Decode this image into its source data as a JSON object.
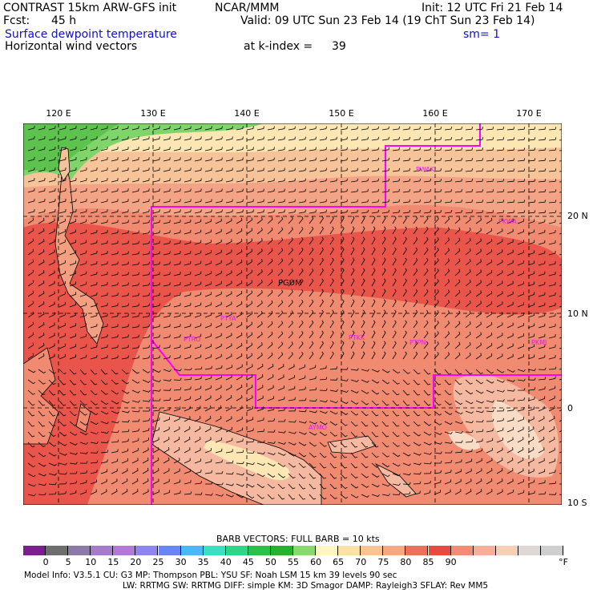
{
  "header": {
    "model_title": "CONTRAST 15km ARW-GFS init",
    "org": "NCAR/MMM",
    "init": "Init: 12 UTC Fri 21 Feb 14",
    "fcst_label": "Fcst:",
    "fcst_value": "45 h",
    "valid": "Valid: 09 UTC Sun 23 Feb 14 (19 ChT Sun 23 Feb 14)",
    "field1": "Surface dewpoint temperature",
    "smoothing": "sm= 1",
    "field2": "Horizontal wind vectors",
    "kindex": "at k-index =",
    "kindex_value": "39"
  },
  "map": {
    "lon_labels": [
      "120 E",
      "130 E",
      "140 E",
      "150 E",
      "160 E",
      "170 E"
    ],
    "lat_labels": [
      "20 N",
      "10 N",
      "0",
      "10 S"
    ],
    "stations": [
      "PGUM",
      "PTYA",
      "PTRO",
      "PTKK",
      "PTPN",
      "PKMJ",
      "PKWA",
      "PWAK",
      "AYMO"
    ],
    "boundary_color": "#ff00ff",
    "station_color": "#e020e0"
  },
  "legend": {
    "barb_caption": "BARB VECTORS:  FULL BARB = 10 kts",
    "ticks": [
      "0",
      "5",
      "10",
      "15",
      "20",
      "25",
      "30",
      "35",
      "40",
      "45",
      "50",
      "55",
      "60",
      "65",
      "70",
      "75",
      "80",
      "85",
      "90"
    ],
    "unit": "°F",
    "colors": [
      "#7a1f8c",
      "#6e6e6e",
      "#8e7aa8",
      "#a67cc8",
      "#b27ad6",
      "#8e86ee",
      "#6a86f4",
      "#4ab8f4",
      "#3ae0c0",
      "#2ed68a",
      "#26c24a",
      "#28b030",
      "#8ad870",
      "#fff6c4",
      "#fbe0a8",
      "#f8c494",
      "#f5a882",
      "#ef6e5c",
      "#e84a42",
      "#f28c74",
      "#f6b09a",
      "#f6cfb6",
      "#e0d8d4",
      "#cfcfcf"
    ]
  },
  "footer": {
    "line1": "Model Info: V3.5.1    CU: G3     MP: Thompson    PBL: YSU      SF: Noah LSM    15 km   39 levels   90 sec",
    "line2": "LW: RRTMG    SW: RRTMG   DIFF: simple KM: 3D Smagor DAMP: Rayleigh3  SFLAY: Rev MM5"
  }
}
